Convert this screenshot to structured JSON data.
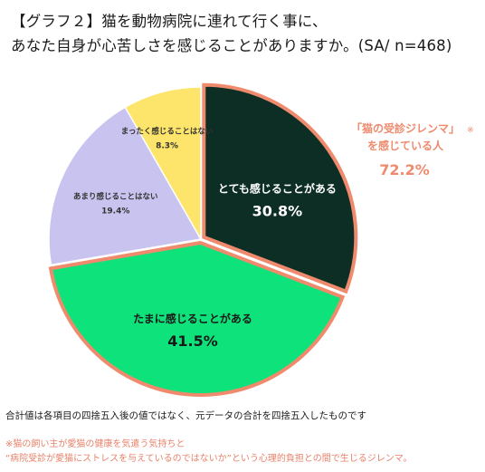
{
  "title": {
    "line1": "【グラフ２】猫を動物病院に連れて行く事に、",
    "line2": "あなた自身が心苦しさを感じることがありますか。(SA/ n=468)"
  },
  "chart_data": {
    "type": "pie",
    "slices": [
      {
        "label": "とても感じることがある",
        "value": 30.8,
        "value_label": "30.8%",
        "color": "#0c2e24",
        "text_color": "#ffffff",
        "highlight": true
      },
      {
        "label": "たまに感じることがある",
        "value": 41.5,
        "value_label": "41.5%",
        "color": "#0ee27a",
        "text_color": "#1a1a1a",
        "highlight": true
      },
      {
        "label": "あまり感じることはない",
        "value": 19.4,
        "value_label": "19.4%",
        "color": "#c8c3ef",
        "text_color": "#333333",
        "highlight": false
      },
      {
        "label": "まったく感じることはない",
        "value": 8.3,
        "value_label": "8.3%",
        "color": "#fde46a",
        "text_color": "#333333",
        "highlight": false
      }
    ],
    "highlight_color": "#ef8a6d",
    "callout": {
      "line1": "「猫の受診ジレンマ」",
      "mark": "※",
      "line2": "を感じている人",
      "value": "72.2%",
      "color": "#ef8a6d"
    }
  },
  "note": "合計値は各項目の四捨五入後の値ではなく、元データの合計を四捨五入したものです",
  "footnote": {
    "line1": "※猫の飼い主が愛猫の健康を気遣う気持ちと",
    "line2": "“病院受診が愛猫にストレスを与えているのではないか”という心理的負担との間で生じるジレンマ。"
  }
}
